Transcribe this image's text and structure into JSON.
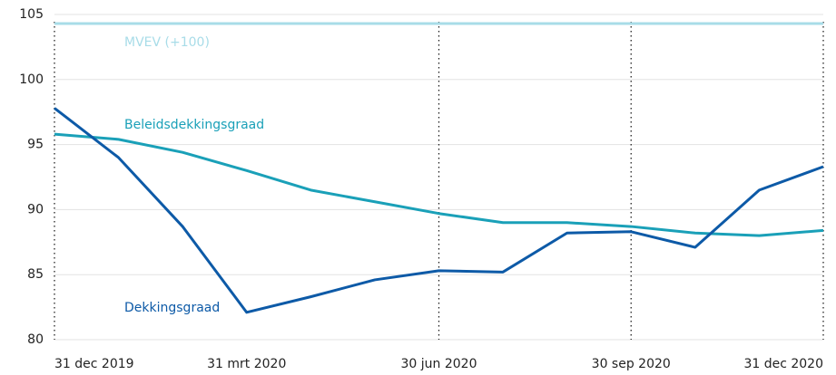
{
  "chart_data": {
    "type": "line",
    "categories": [
      "31 dec 2019",
      null,
      null,
      "31 mrt 2020",
      null,
      null,
      "30 jun 2020",
      null,
      null,
      "30 sep 2020",
      null,
      null,
      "31 dec 2020"
    ],
    "series": [
      {
        "name": "Beleidsdekkingsgraad",
        "color": "#1aa0b8",
        "values": [
          95.8,
          95.4,
          94.4,
          93.0,
          91.5,
          90.6,
          89.7,
          89.0,
          89.0,
          88.7,
          88.2,
          88.0,
          88.4
        ]
      },
      {
        "name": "Dekkingsgraad",
        "color": "#0d5aa7",
        "values": [
          97.8,
          94.0,
          88.7,
          82.1,
          83.3,
          84.6,
          85.3,
          85.2,
          88.2,
          88.3,
          87.1,
          91.5,
          93.3
        ]
      }
    ],
    "reference_lines": [
      {
        "label": "MVEV (+100)",
        "value": 104.3,
        "color": "#a8dce8"
      }
    ],
    "dotted_gridlines_at": [
      0,
      6,
      9,
      12
    ],
    "ylim": [
      80,
      105
    ],
    "yticks": [
      80,
      85,
      90,
      95,
      100,
      105
    ],
    "grid": true
  }
}
